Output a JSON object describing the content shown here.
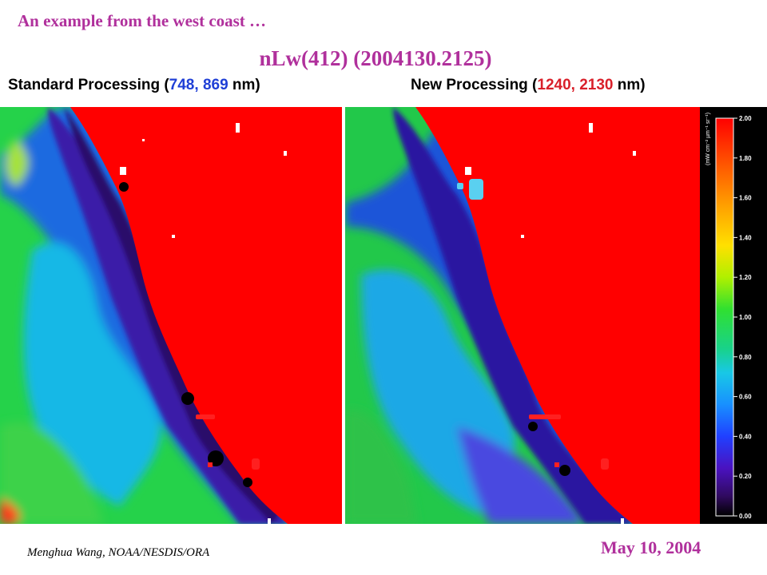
{
  "header": {
    "subtitle": "An example from the west coast …",
    "title": "nLw(412) (2004130.2125)"
  },
  "panels": {
    "standard": {
      "label_prefix": "Standard Processing (",
      "band1": "748",
      "sep": ", ",
      "band2": "869",
      "label_suffix": " nm)"
    },
    "new": {
      "label_prefix": "New Processing (",
      "band1": "1240",
      "sep": ", ",
      "band2": "2130",
      "label_suffix": " nm)"
    }
  },
  "colorbar": {
    "unit": "(mW cm⁻² µm⁻¹ sr⁻¹)",
    "ticks": [
      "2.00",
      "1.80",
      "1.60",
      "1.40",
      "1.20",
      "1.00",
      "0.80",
      "0.60",
      "0.40",
      "0.20",
      "0.00"
    ]
  },
  "footer": {
    "author": "Menghua Wang, NOAA/NESDIS/ORA",
    "date": "May 10, 2004"
  },
  "colors": {
    "title": "#b0309c",
    "land": "#ff0000",
    "band_standard": "#1f3fd6",
    "band_new": "#d9202a"
  }
}
